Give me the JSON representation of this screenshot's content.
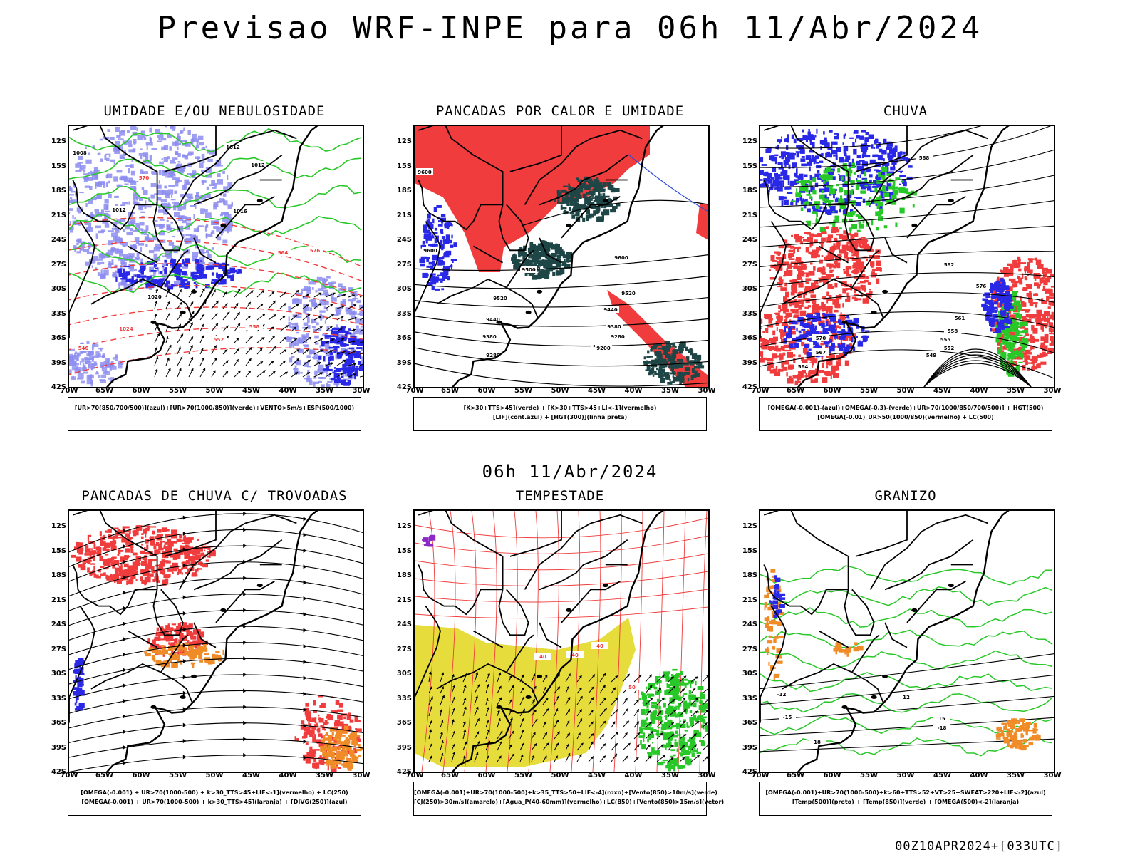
{
  "header": {
    "title": "Previsao WRF-INPE  para 06h 11/Abr/2024",
    "subtitle": "06h 11/Abr/2024"
  },
  "footer": {
    "run_label": "00Z10APR2024+[033UTC]"
  },
  "axes": {
    "lat_ticks": [
      "12S",
      "15S",
      "18S",
      "21S",
      "24S",
      "27S",
      "30S",
      "33S",
      "36S",
      "39S",
      "42S"
    ],
    "lon_ticks": [
      "70W",
      "65W",
      "60W",
      "55W",
      "50W",
      "45W",
      "40W",
      "35W",
      "30W"
    ]
  },
  "panels": [
    {
      "title": "UMIDADE E/OU NEBULOSIDADE",
      "legend": [
        "[UR>70(850/700/500)](azul)+[UR>70(1000/850)](verde)+VENTO>5m/s+ESP(500/1000)"
      ],
      "contour_labels": [
        "1008",
        "1012",
        "1012",
        "1012",
        "1016",
        "1020",
        "1024",
        "576",
        "570",
        "564",
        "558",
        "552",
        "546"
      ]
    },
    {
      "title": "PANCADAS POR CALOR E UMIDADE",
      "legend": [
        "[K>30+TTS>45](verde) + [K>30+TTS>45+LI<-1](vermelho)",
        "[LIF](cont.azul) + [HGT(300)](linha preta)"
      ],
      "contour_labels": [
        "9600",
        "9600",
        "9520",
        "9440",
        "9380",
        "9280",
        "9200",
        "9600",
        "9520",
        "9440",
        "9380",
        "9280",
        "9200",
        "9500"
      ]
    },
    {
      "title": "CHUVA",
      "legend": [
        "[OMEGA(-0.001)-(azul)+OMEGA(-0.3)-(verde)+UR>70(1000/850/700/500)] + HGT(500)",
        "[OMEGA(-0.01)_UR>50(1000/850)(vermelho) + LC(500)"
      ],
      "contour_labels": [
        "588",
        "582",
        "576",
        "570",
        "567",
        "564",
        "561",
        "558",
        "555",
        "552",
        "549"
      ]
    },
    {
      "title": "PANCADAS DE CHUVA C/ TROVOADAS",
      "legend": [
        "[OMEGA(-0.001) + UR>70(1000-500) + k>30_TTS>45+LIF<-1](vermelho) + LC(250)",
        "[OMEGA(-0.001) + UR>70(1000-500) + k>30_TTS>45](laranja) + [DIVG(250)](azul)"
      ],
      "contour_labels": []
    },
    {
      "title": "TEMPESTADE",
      "legend": [
        "[OMEGA(-0.001)+UR>70(1000-500)+k>35_TTS>50+LIF<-4](roxo)+[Vento(850)>10m/s](verde)",
        "[CJ(250)>30m/s](amarelo)+[Agua_P(40-60mm)](vermelho)+LC(850)+[Vento(850)>15m/s](vetor)"
      ],
      "contour_labels": [
        "40",
        "40",
        "40",
        "50"
      ]
    },
    {
      "title": "GRANIZO",
      "legend": [
        "[OMEGA(-0.001)+UR>70(1000-500)+k>60+TTS>52+VT>25+SWEAT>220+LIF<-2](azul)",
        "[Temp(500)](preto) + [Temp(850)](verde) + [OMEGA(500)<-2](laranja)"
      ],
      "contour_labels": [
        "-12",
        "-15",
        "-18",
        "12",
        "15",
        "18"
      ]
    }
  ],
  "colors": {
    "blue_humidity": "#8c8cf0",
    "deep_blue": "#2828e6",
    "green": "#28c828",
    "red": "#f03c3c",
    "dark_teal": "#1e4646",
    "orange": "#f08c28",
    "yellow": "#e6dc3c",
    "purple": "#8c28c8",
    "black": "#000000"
  }
}
